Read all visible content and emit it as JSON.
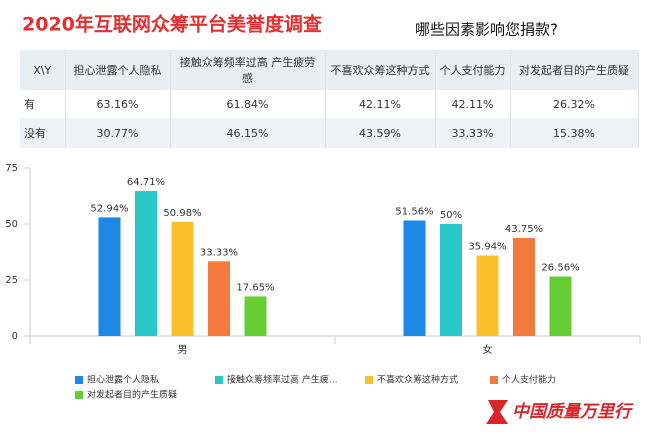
{
  "title": "2020年互联网众筹平台美誉度调查",
  "subtitle": "哪些因素影响您捐款?",
  "table": {
    "header": [
      "X\\Y",
      "担心泄露个人隐私",
      "接触众筹频率过高 产生疲劳感",
      "不喜欢众筹这种方式",
      "个人支付能力",
      "对发起者目的产生质疑"
    ],
    "rows": [
      [
        "有",
        "63.16%",
        "61.84%",
        "42.11%",
        "42.11%",
        "26.32%"
      ],
      [
        "没有",
        "30.77%",
        "46.15%",
        "43.59%",
        "33.33%",
        "15.38%"
      ]
    ]
  },
  "chart_data": {
    "type": "bar",
    "categories": [
      "男",
      "女"
    ],
    "series": [
      {
        "name": "担心泄露个人隐私",
        "color": "#1e88e5",
        "values": [
          52.94,
          51.56
        ],
        "value_labels": [
          "52.94%",
          "51.56%"
        ]
      },
      {
        "name": "接触众筹频率过高 产生疲...",
        "color": "#29c7c7",
        "values": [
          64.71,
          50
        ],
        "value_labels": [
          "64.71%",
          "50%"
        ]
      },
      {
        "name": "不喜欢众筹这种方式",
        "color": "#f9c02a",
        "values": [
          50.98,
          35.94
        ],
        "value_labels": [
          "50.98%",
          "35.94%"
        ]
      },
      {
        "name": "个人支付能力",
        "color": "#f27a3c",
        "values": [
          33.33,
          43.75
        ],
        "value_labels": [
          "33.33%",
          "43.75%"
        ]
      },
      {
        "name": "对发起者目的产生质疑",
        "color": "#66cc33",
        "values": [
          17.65,
          26.56
        ],
        "value_labels": [
          "17.65%",
          "26.56%"
        ]
      }
    ],
    "ylim": [
      0,
      75
    ],
    "yticks": [
      0,
      25,
      50,
      75
    ]
  },
  "logo": "中国质量万里行"
}
